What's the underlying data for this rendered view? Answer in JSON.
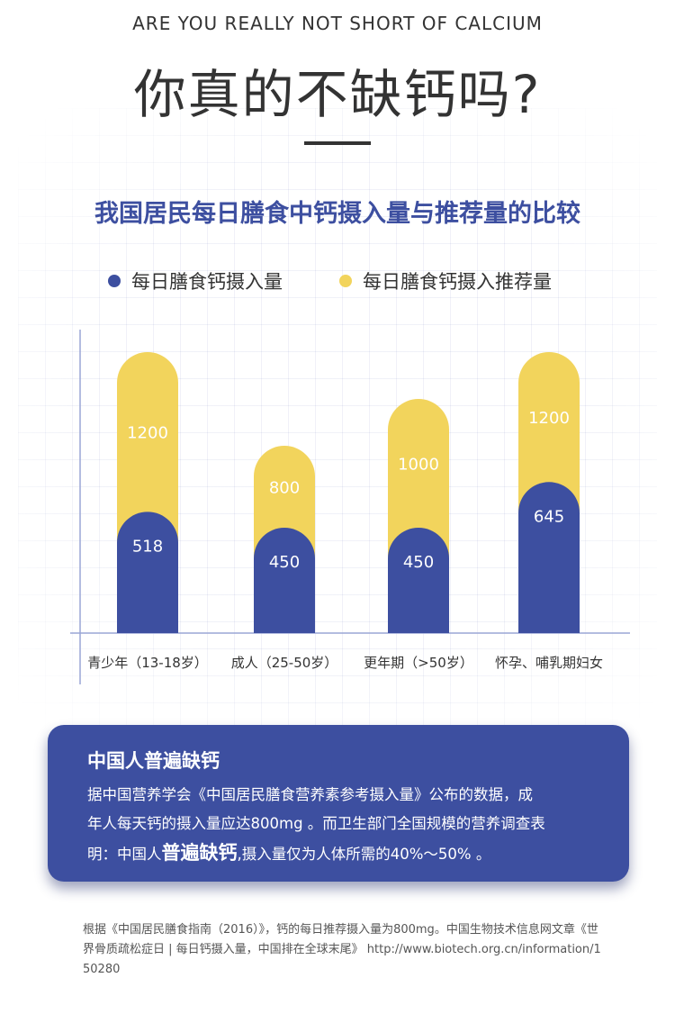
{
  "header": {
    "subtitle_en": "ARE YOU REALLY NOT SHORT OF CALCIUM",
    "title": "你真的不缺钙吗?"
  },
  "chart_data": {
    "type": "bar",
    "title": "我国居民每日膳食中钙摄入量与推荐量的比较",
    "categories": [
      "青少年（13-18岁）",
      "成人（25-50岁）",
      "更年期（>50岁）",
      "怀孕、哺乳期妇女"
    ],
    "series": [
      {
        "name": "每日膳食钙摄入量",
        "values": [
          518,
          450,
          450,
          645
        ],
        "color": "#3d4fa0"
      },
      {
        "name": "每日膳食钙摄入推荐量",
        "values": [
          1200,
          800,
          1000,
          1200
        ],
        "color": "#f2d45c"
      }
    ],
    "legend_position": "top-center",
    "grid": true,
    "ylim": [
      0,
      1400
    ]
  },
  "callout": {
    "title": "中国人普遍缺钙",
    "line1": "据中国营养学会《中国居民膳食营养素参考摄入量》公布的数据，成",
    "line2": "年人每天钙的摄入量应达800mg 。而卫生部门全国规模的营养调查表",
    "line3_pre": "明：中国人",
    "line3_emph": "普遍缺钙",
    "line3_post": ",摄入量仅为人体所需的40%～50% 。"
  },
  "source": "根据《中国居民膳食指南（2016）》，钙的每日推荐摄入量为800mg。中国生物技术信息网文章《世界骨质疏松症日 | 每日钙摄入量，中国排在全球末尾》 http://www.biotech.org.cn/information/150280"
}
